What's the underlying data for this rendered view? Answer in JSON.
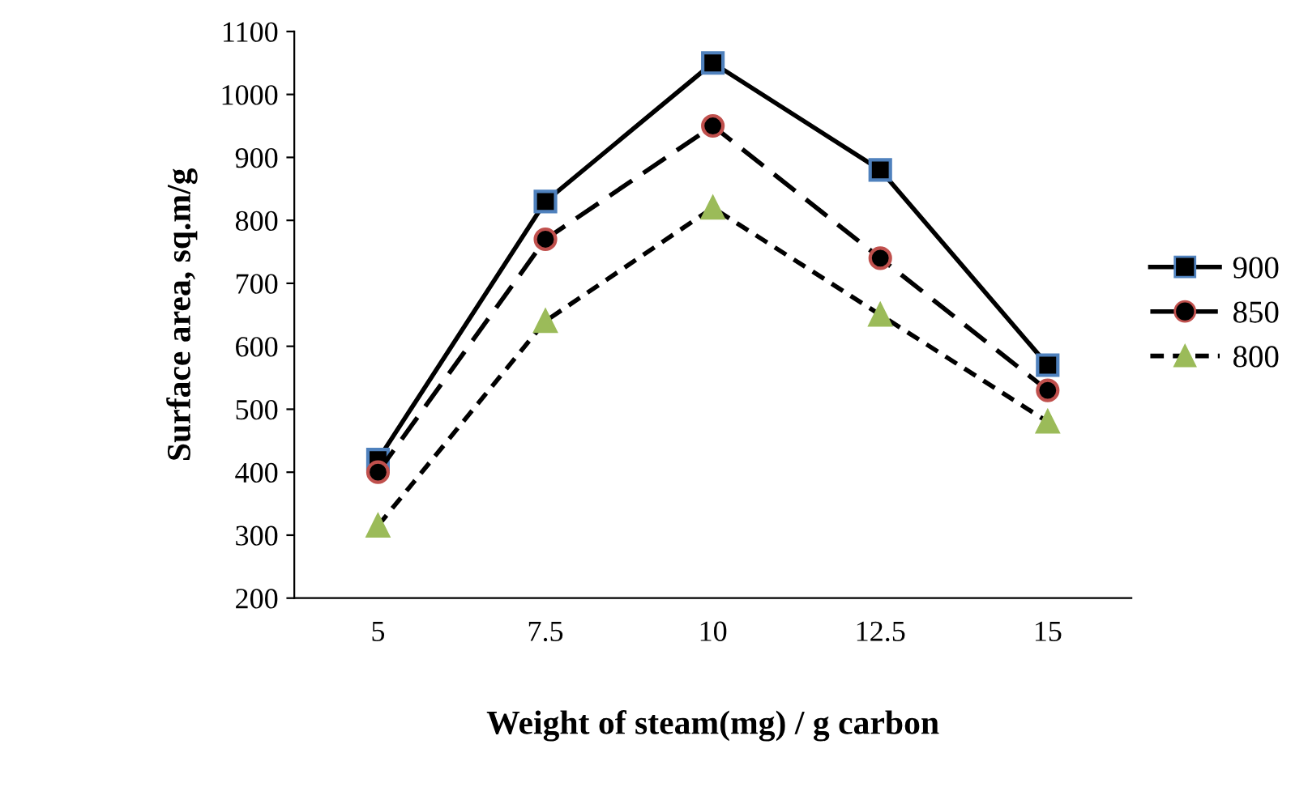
{
  "chart_data": {
    "type": "line",
    "xlabel": "Weight of steam(mg) / g carbon",
    "ylabel": "Surface area, sq.m/g",
    "categories": [
      "5",
      "7.5",
      "10",
      "12.5",
      "15"
    ],
    "series": [
      {
        "name": "900",
        "color": "#000000",
        "marker": "square",
        "line_style": "solid",
        "values": [
          420,
          830,
          1050,
          880,
          570
        ]
      },
      {
        "name": "850",
        "color": "#000000",
        "marker": "circle",
        "line_style": "dashed",
        "values": [
          400,
          770,
          950,
          740,
          530
        ]
      },
      {
        "name": "800",
        "color": "#9bbb59",
        "marker": "triangle",
        "line_style": "dotted",
        "values": [
          315,
          640,
          820,
          650,
          480
        ]
      }
    ],
    "ylim": [
      200,
      1100
    ],
    "yticks": [
      200,
      300,
      400,
      500,
      600,
      700,
      800,
      900,
      1000,
      1100
    ],
    "grid": false,
    "legend": "right"
  }
}
